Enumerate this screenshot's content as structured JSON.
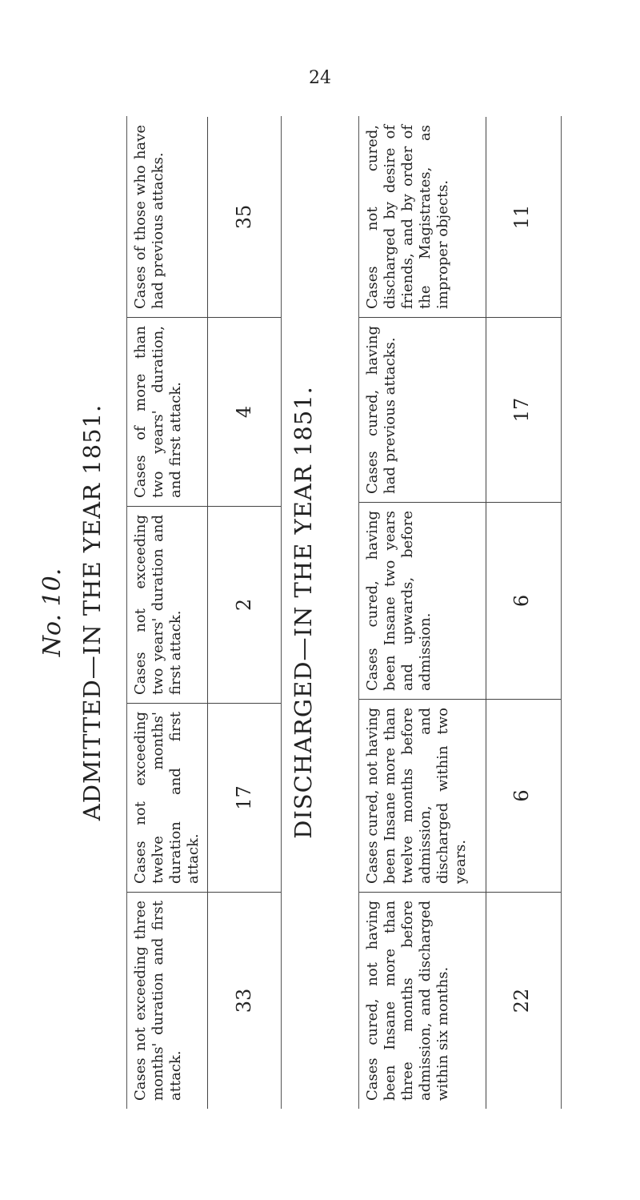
{
  "page_number": "24",
  "table_number": "No. 10.",
  "admitted": {
    "title": "ADMITTED—IN THE YEAR 1851.",
    "columns": [
      {
        "label": "Cases not exceeding three months' duration and first attack.",
        "value": "33"
      },
      {
        "label": "Cases not exceeding twelve months' duration and first attack.",
        "value": "17"
      },
      {
        "label": "Cases not exceeding two years' duration and first attack.",
        "value": "2"
      },
      {
        "label": "Cases of more than two years' duration, and first attack.",
        "value": "4"
      },
      {
        "label": "Cases of those who have had previous attacks.",
        "value": "35"
      }
    ]
  },
  "discharged": {
    "title": "DISCHARGED—IN THE YEAR 1851.",
    "columns": [
      {
        "label": "Cases cured, not having been Insane more than three months before admission, and discharged within six months.",
        "value": "22"
      },
      {
        "label": "Cases cured, not having been Insane more than twelve months before admission, and discharged within two years.",
        "value": "6"
      },
      {
        "label": "Cases cured, having been Insane two years and upwards, before admission.",
        "value": "6"
      },
      {
        "label": "Cases cured, having had previous attacks.",
        "value": "17"
      },
      {
        "label": "Cases not cured, discharged by desire of friends, and by order of the Magistrates, as improper objects.",
        "value": "11"
      }
    ]
  }
}
